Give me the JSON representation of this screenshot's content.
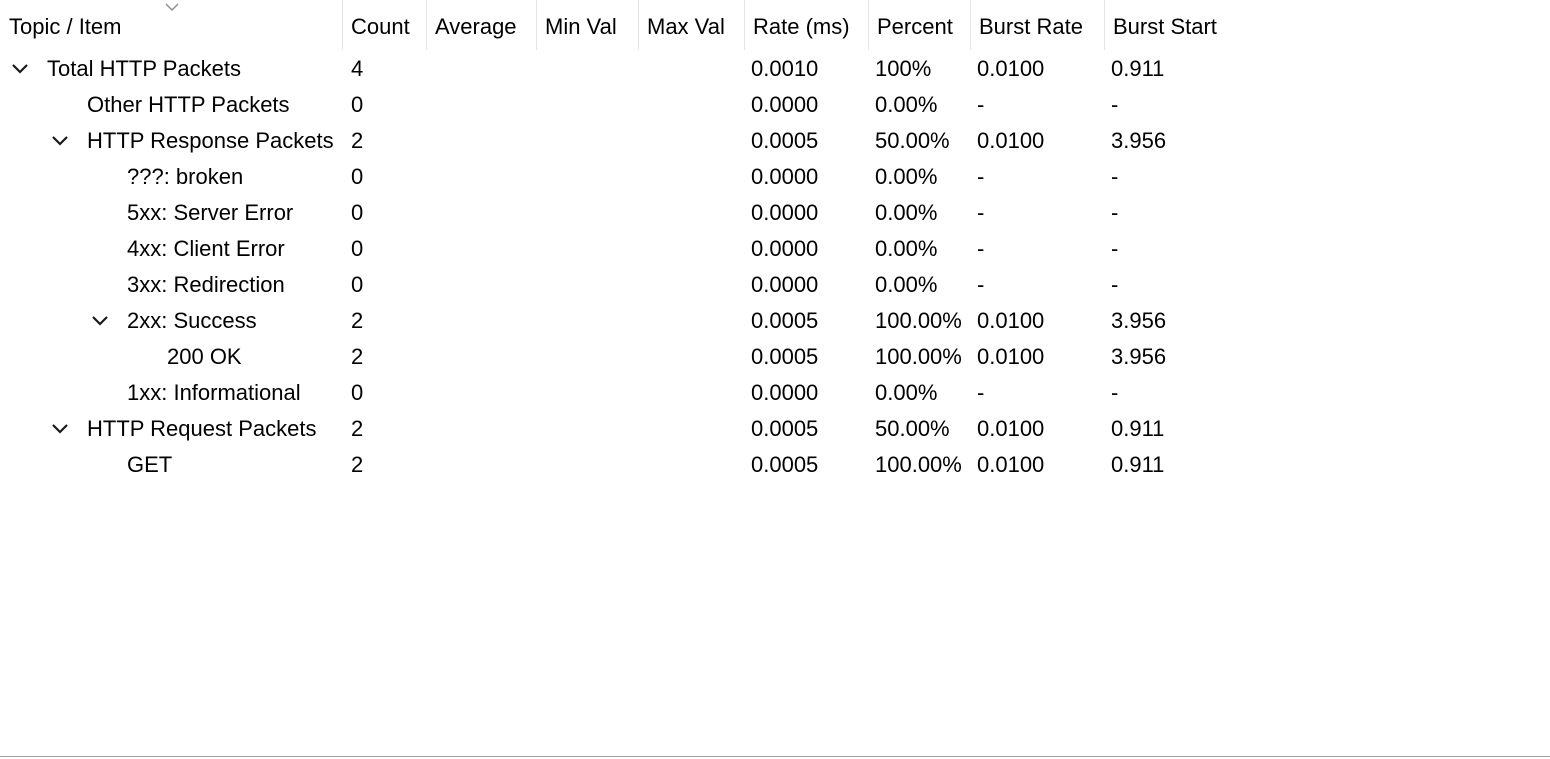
{
  "columns": {
    "topic": "Topic / Item",
    "count": "Count",
    "average": "Average",
    "min": "Min Val",
    "max": "Max Val",
    "rate": "Rate (ms)",
    "percent": "Percent",
    "burst_rate": "Burst Rate",
    "burst_start": "Burst Start"
  },
  "sort_icon": "chevron-down-icon",
  "rows": [
    {
      "topic": "Total HTTP Packets",
      "level": 0,
      "expanded": true,
      "count": "4",
      "average": "",
      "min": "",
      "max": "",
      "rate": "0.0010",
      "percent": "100%",
      "burst_rate": "0.0100",
      "burst_start": "0.911"
    },
    {
      "topic": "Other HTTP Packets",
      "level": 1,
      "expanded": null,
      "count": "0",
      "average": "",
      "min": "",
      "max": "",
      "rate": "0.0000",
      "percent": "0.00%",
      "burst_rate": "-",
      "burst_start": "-"
    },
    {
      "topic": "HTTP Response Packets",
      "level": 1,
      "expanded": true,
      "count": "2",
      "average": "",
      "min": "",
      "max": "",
      "rate": "0.0005",
      "percent": "50.00%",
      "burst_rate": "0.0100",
      "burst_start": "3.956"
    },
    {
      "topic": "???: broken",
      "level": 2,
      "expanded": null,
      "count": "0",
      "average": "",
      "min": "",
      "max": "",
      "rate": "0.0000",
      "percent": "0.00%",
      "burst_rate": "-",
      "burst_start": "-"
    },
    {
      "topic": "5xx: Server Error",
      "level": 2,
      "expanded": null,
      "count": "0",
      "average": "",
      "min": "",
      "max": "",
      "rate": "0.0000",
      "percent": "0.00%",
      "burst_rate": "-",
      "burst_start": "-"
    },
    {
      "topic": "4xx: Client Error",
      "level": 2,
      "expanded": null,
      "count": "0",
      "average": "",
      "min": "",
      "max": "",
      "rate": "0.0000",
      "percent": "0.00%",
      "burst_rate": "-",
      "burst_start": "-"
    },
    {
      "topic": "3xx: Redirection",
      "level": 2,
      "expanded": null,
      "count": "0",
      "average": "",
      "min": "",
      "max": "",
      "rate": "0.0000",
      "percent": "0.00%",
      "burst_rate": "-",
      "burst_start": "-"
    },
    {
      "topic": "2xx: Success",
      "level": 2,
      "expanded": true,
      "count": "2",
      "average": "",
      "min": "",
      "max": "",
      "rate": "0.0005",
      "percent": "100.00%",
      "burst_rate": "0.0100",
      "burst_start": "3.956"
    },
    {
      "topic": "200 OK",
      "level": 3,
      "expanded": null,
      "count": "2",
      "average": "",
      "min": "",
      "max": "",
      "rate": "0.0005",
      "percent": "100.00%",
      "burst_rate": "0.0100",
      "burst_start": "3.956"
    },
    {
      "topic": "1xx: Informational",
      "level": 2,
      "expanded": null,
      "count": "0",
      "average": "",
      "min": "",
      "max": "",
      "rate": "0.0000",
      "percent": "0.00%",
      "burst_rate": "-",
      "burst_start": "-"
    },
    {
      "topic": "HTTP Request Packets",
      "level": 1,
      "expanded": true,
      "count": "2",
      "average": "",
      "min": "",
      "max": "",
      "rate": "0.0005",
      "percent": "50.00%",
      "burst_rate": "0.0100",
      "burst_start": "0.911"
    },
    {
      "topic": "GET",
      "level": 2,
      "expanded": null,
      "count": "2",
      "average": "",
      "min": "",
      "max": "",
      "rate": "0.0005",
      "percent": "100.00%",
      "burst_rate": "0.0100",
      "burst_start": "0.911"
    }
  ]
}
